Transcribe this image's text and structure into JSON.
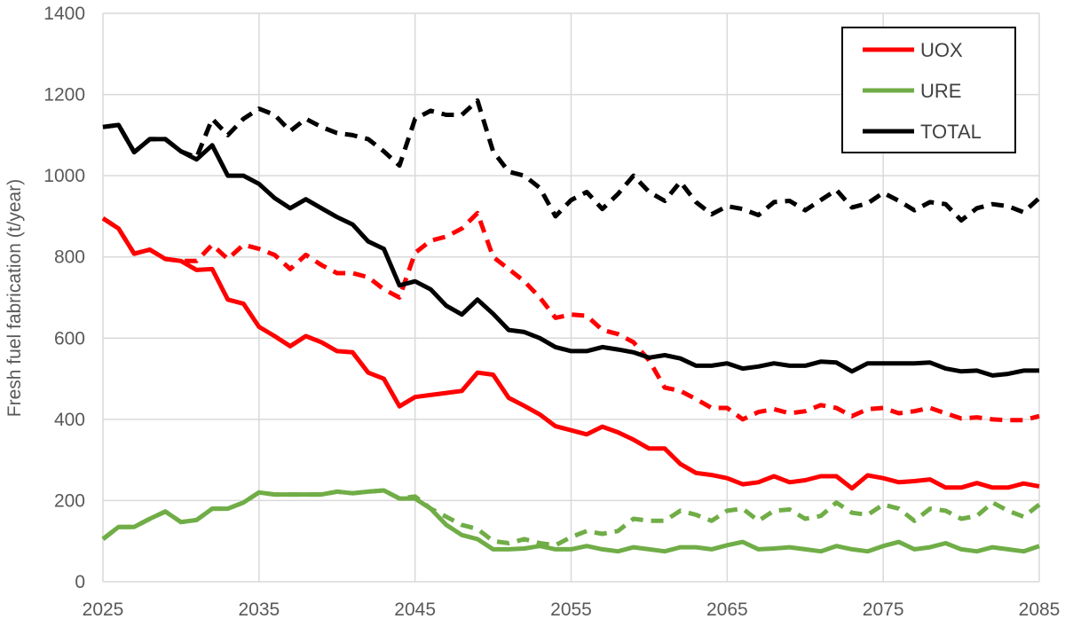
{
  "chart_data": {
    "type": "line",
    "title": "",
    "xlabel": "",
    "ylabel": "Fresh fuel fabrication (t/year)",
    "xlim": [
      2025,
      2085
    ],
    "ylim": [
      0,
      1400
    ],
    "x_ticks": [
      2025,
      2035,
      2045,
      2055,
      2065,
      2075,
      2085
    ],
    "y_ticks": [
      0,
      200,
      400,
      600,
      800,
      1000,
      1200,
      1400
    ],
    "grid": "vertical and horizontal",
    "legend": {
      "position": "top-right",
      "entries": [
        "UOX",
        "URE",
        "TOTAL"
      ]
    },
    "colors": {
      "UOX": "#ff0000",
      "URE": "#70ad47",
      "TOTAL": "#000000",
      "grid": "#d9d9d9"
    },
    "x": [
      2025,
      2026,
      2027,
      2028,
      2029,
      2030,
      2031,
      2032,
      2033,
      2034,
      2035,
      2036,
      2037,
      2038,
      2039,
      2040,
      2041,
      2042,
      2043,
      2044,
      2045,
      2046,
      2047,
      2048,
      2049,
      2050,
      2051,
      2052,
      2053,
      2054,
      2055,
      2056,
      2057,
      2058,
      2059,
      2060,
      2061,
      2062,
      2063,
      2064,
      2065,
      2066,
      2067,
      2068,
      2069,
      2070,
      2071,
      2072,
      2073,
      2074,
      2075,
      2076,
      2077,
      2078,
      2079,
      2080,
      2081,
      2082,
      2083,
      2084,
      2085
    ],
    "series": [
      {
        "name": "UOX",
        "color": "#ff0000",
        "dash": "solid",
        "values": [
          895,
          870,
          808,
          818,
          795,
          790,
          768,
          770,
          695,
          685,
          628,
          605,
          580,
          605,
          590,
          568,
          565,
          515,
          500,
          432,
          455,
          460,
          465,
          470,
          515,
          510,
          453,
          433,
          412,
          383,
          373,
          363,
          382,
          368,
          350,
          328,
          328,
          290,
          268,
          263,
          255,
          240,
          245,
          260,
          245,
          250,
          260,
          260,
          230,
          262,
          255,
          245,
          248,
          252,
          232,
          232,
          243,
          232,
          232,
          242,
          235
        ]
      },
      {
        "name": "URE",
        "color": "#70ad47",
        "dash": "solid",
        "values": [
          105,
          135,
          135,
          155,
          173,
          147,
          152,
          180,
          180,
          195,
          220,
          215,
          215,
          215,
          215,
          222,
          218,
          222,
          225,
          205,
          205,
          180,
          140,
          115,
          105,
          80,
          80,
          82,
          88,
          80,
          80,
          88,
          80,
          75,
          85,
          80,
          75,
          85,
          85,
          80,
          90,
          98,
          80,
          82,
          85,
          80,
          75,
          88,
          80,
          75,
          88,
          98,
          80,
          85,
          95,
          80,
          75,
          85,
          80,
          75,
          88
        ]
      },
      {
        "name": "TOTAL",
        "color": "#000000",
        "dash": "solid",
        "values": [
          1120,
          1125,
          1058,
          1090,
          1090,
          1060,
          1040,
          1075,
          1000,
          1000,
          980,
          945,
          920,
          942,
          920,
          898,
          880,
          838,
          820,
          730,
          740,
          720,
          680,
          658,
          695,
          660,
          620,
          615,
          600,
          578,
          568,
          568,
          578,
          572,
          565,
          552,
          558,
          550,
          532,
          532,
          538,
          525,
          530,
          538,
          532,
          532,
          542,
          540,
          518,
          538,
          538,
          538,
          538,
          540,
          525,
          518,
          520,
          508,
          512,
          520,
          520
        ]
      },
      {
        "name": "UOX (dashed)",
        "color": "#ff0000",
        "dash": "dashed",
        "values": [
          895,
          870,
          808,
          818,
          795,
          790,
          790,
          830,
          795,
          830,
          820,
          805,
          770,
          805,
          780,
          760,
          760,
          750,
          720,
          700,
          810,
          840,
          850,
          870,
          908,
          800,
          770,
          740,
          700,
          650,
          658,
          655,
          620,
          610,
          590,
          545,
          478,
          470,
          450,
          428,
          428,
          400,
          418,
          425,
          415,
          420,
          435,
          428,
          408,
          425,
          428,
          415,
          420,
          428,
          415,
          402,
          405,
          400,
          398,
          398,
          408
        ]
      },
      {
        "name": "URE (dashed)",
        "color": "#70ad47",
        "dash": "dashed",
        "values": [
          105,
          135,
          135,
          155,
          173,
          147,
          152,
          180,
          180,
          195,
          220,
          215,
          215,
          215,
          215,
          222,
          218,
          222,
          225,
          205,
          210,
          180,
          160,
          140,
          130,
          100,
          95,
          105,
          95,
          90,
          110,
          125,
          118,
          125,
          155,
          150,
          150,
          175,
          165,
          150,
          175,
          180,
          150,
          175,
          178,
          155,
          162,
          195,
          170,
          165,
          190,
          180,
          150,
          180,
          175,
          155,
          162,
          195,
          175,
          160,
          190
        ]
      },
      {
        "name": "TOTAL (dashed)",
        "color": "#000000",
        "dash": "dashed",
        "values": [
          1120,
          1125,
          1058,
          1090,
          1090,
          1060,
          1045,
          1140,
          1100,
          1140,
          1165,
          1150,
          1110,
          1140,
          1120,
          1105,
          1100,
          1090,
          1060,
          1025,
          1140,
          1160,
          1150,
          1150,
          1185,
          1060,
          1010,
          1000,
          970,
          900,
          940,
          960,
          918,
          955,
          1000,
          960,
          938,
          985,
          935,
          905,
          925,
          918,
          903,
          935,
          938,
          915,
          940,
          965,
          922,
          932,
          958,
          938,
          915,
          935,
          930,
          890,
          920,
          930,
          925,
          910,
          945
        ]
      }
    ]
  }
}
